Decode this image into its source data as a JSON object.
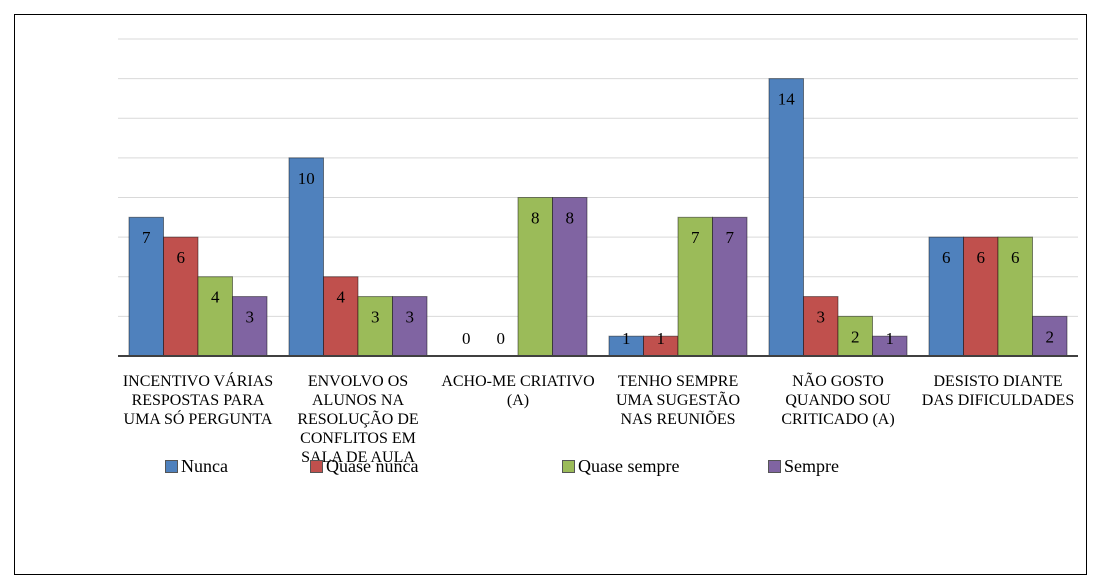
{
  "chart_data": {
    "type": "bar",
    "categories": [
      "INCENTIVO VÁRIAS RESPOSTAS PARA UMA SÓ PERGUNTA",
      "ENVOLVO OS ALUNOS NA RESOLUÇÃO DE CONFLITOS EM SALA DE AULA",
      "ACHO-ME CRIATIVO (A)",
      "TENHO SEMPRE UMA SUGESTÃO NAS REUNIÕES",
      "NÃO GOSTO QUANDO SOU CRITICADO (A)",
      "DESISTO DIANTE DAS DIFICULDADES"
    ],
    "series": [
      {
        "name": "Nunca",
        "color": "#4f81bd",
        "values": [
          7,
          10,
          0,
          1,
          14,
          6
        ]
      },
      {
        "name": "Quase nunca",
        "color": "#c0504d",
        "values": [
          6,
          4,
          0,
          1,
          3,
          6
        ]
      },
      {
        "name": "Quase sempre",
        "color": "#9bbb59",
        "values": [
          4,
          3,
          8,
          7,
          2,
          6
        ]
      },
      {
        "name": "Sempre",
        "color": "#8064a2",
        "values": [
          3,
          3,
          8,
          7,
          1,
          2
        ]
      }
    ],
    "ylim": [
      0,
      16
    ],
    "yticks": [
      0,
      2,
      4,
      6,
      8,
      10,
      12,
      14,
      16
    ],
    "grid": true,
    "legend": "bottom"
  }
}
